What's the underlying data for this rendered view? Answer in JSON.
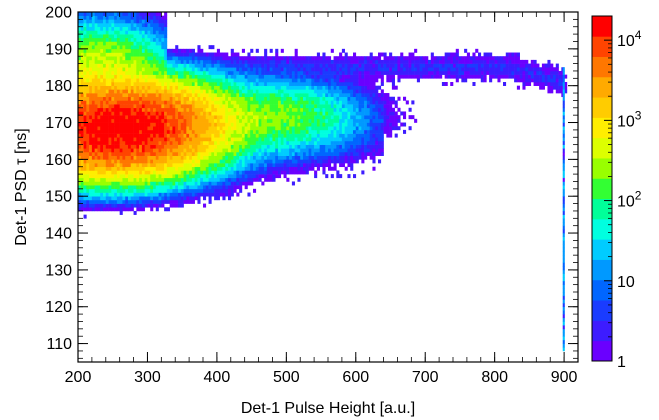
{
  "chart_data": {
    "type": "heatmap",
    "xlabel": "Det-1 Pulse Height [a.u.]",
    "ylabel": "Det-1 PSD τ [ns]",
    "xlim": [
      200,
      920
    ],
    "ylim": [
      105,
      200
    ],
    "x_ticks": [
      200,
      300,
      400,
      500,
      600,
      700,
      800,
      900
    ],
    "y_ticks": [
      110,
      120,
      130,
      140,
      150,
      160,
      170,
      180,
      190,
      200
    ],
    "z_scale": "log",
    "z_range": [
      1,
      20000
    ],
    "colorbar": {
      "tick_labels": [
        {
          "base": "10",
          "exp": "4",
          "value": 10000
        },
        {
          "base": "10",
          "exp": "3",
          "value": 1000
        },
        {
          "base": "10",
          "exp": "2",
          "value": 100
        },
        {
          "base": "10",
          "exp": "",
          "value": 10
        },
        {
          "base": "1",
          "exp": "",
          "value": 1
        }
      ],
      "colors": [
        "#6a00ff",
        "#3d1cff",
        "#1a3cff",
        "#0066ff",
        "#0099ff",
        "#00ccff",
        "#00ffe0",
        "#00ff99",
        "#33ff33",
        "#99ff00",
        "#ddff00",
        "#ffee00",
        "#ffcc00",
        "#ffaa00",
        "#ff7700",
        "#ff4400",
        "#ff0000"
      ],
      "position": "right"
    },
    "regions": [
      {
        "name": "upper band",
        "x_range": [
          200,
          300
        ],
        "y_center": 182,
        "y_width": 6,
        "peak_x": 230,
        "peak_count": 600
      },
      {
        "name": "upper tail",
        "x_range": [
          300,
          900
        ],
        "y_center": 185,
        "y_width": 2,
        "peak_count": 3
      },
      {
        "name": "main band",
        "x_range": [
          200,
          620
        ],
        "y_center": 168,
        "y_width": 5,
        "peak_x": 260,
        "peak_count": 20000
      },
      {
        "name": "secondary lobe",
        "x_range": [
          400,
          600
        ],
        "y_center": 172,
        "y_width": 4,
        "peak_x": 480,
        "peak_count": 200
      },
      {
        "name": "saturation line",
        "x": 900,
        "y_range": [
          108,
          185
        ],
        "peak_count": 20
      }
    ]
  }
}
